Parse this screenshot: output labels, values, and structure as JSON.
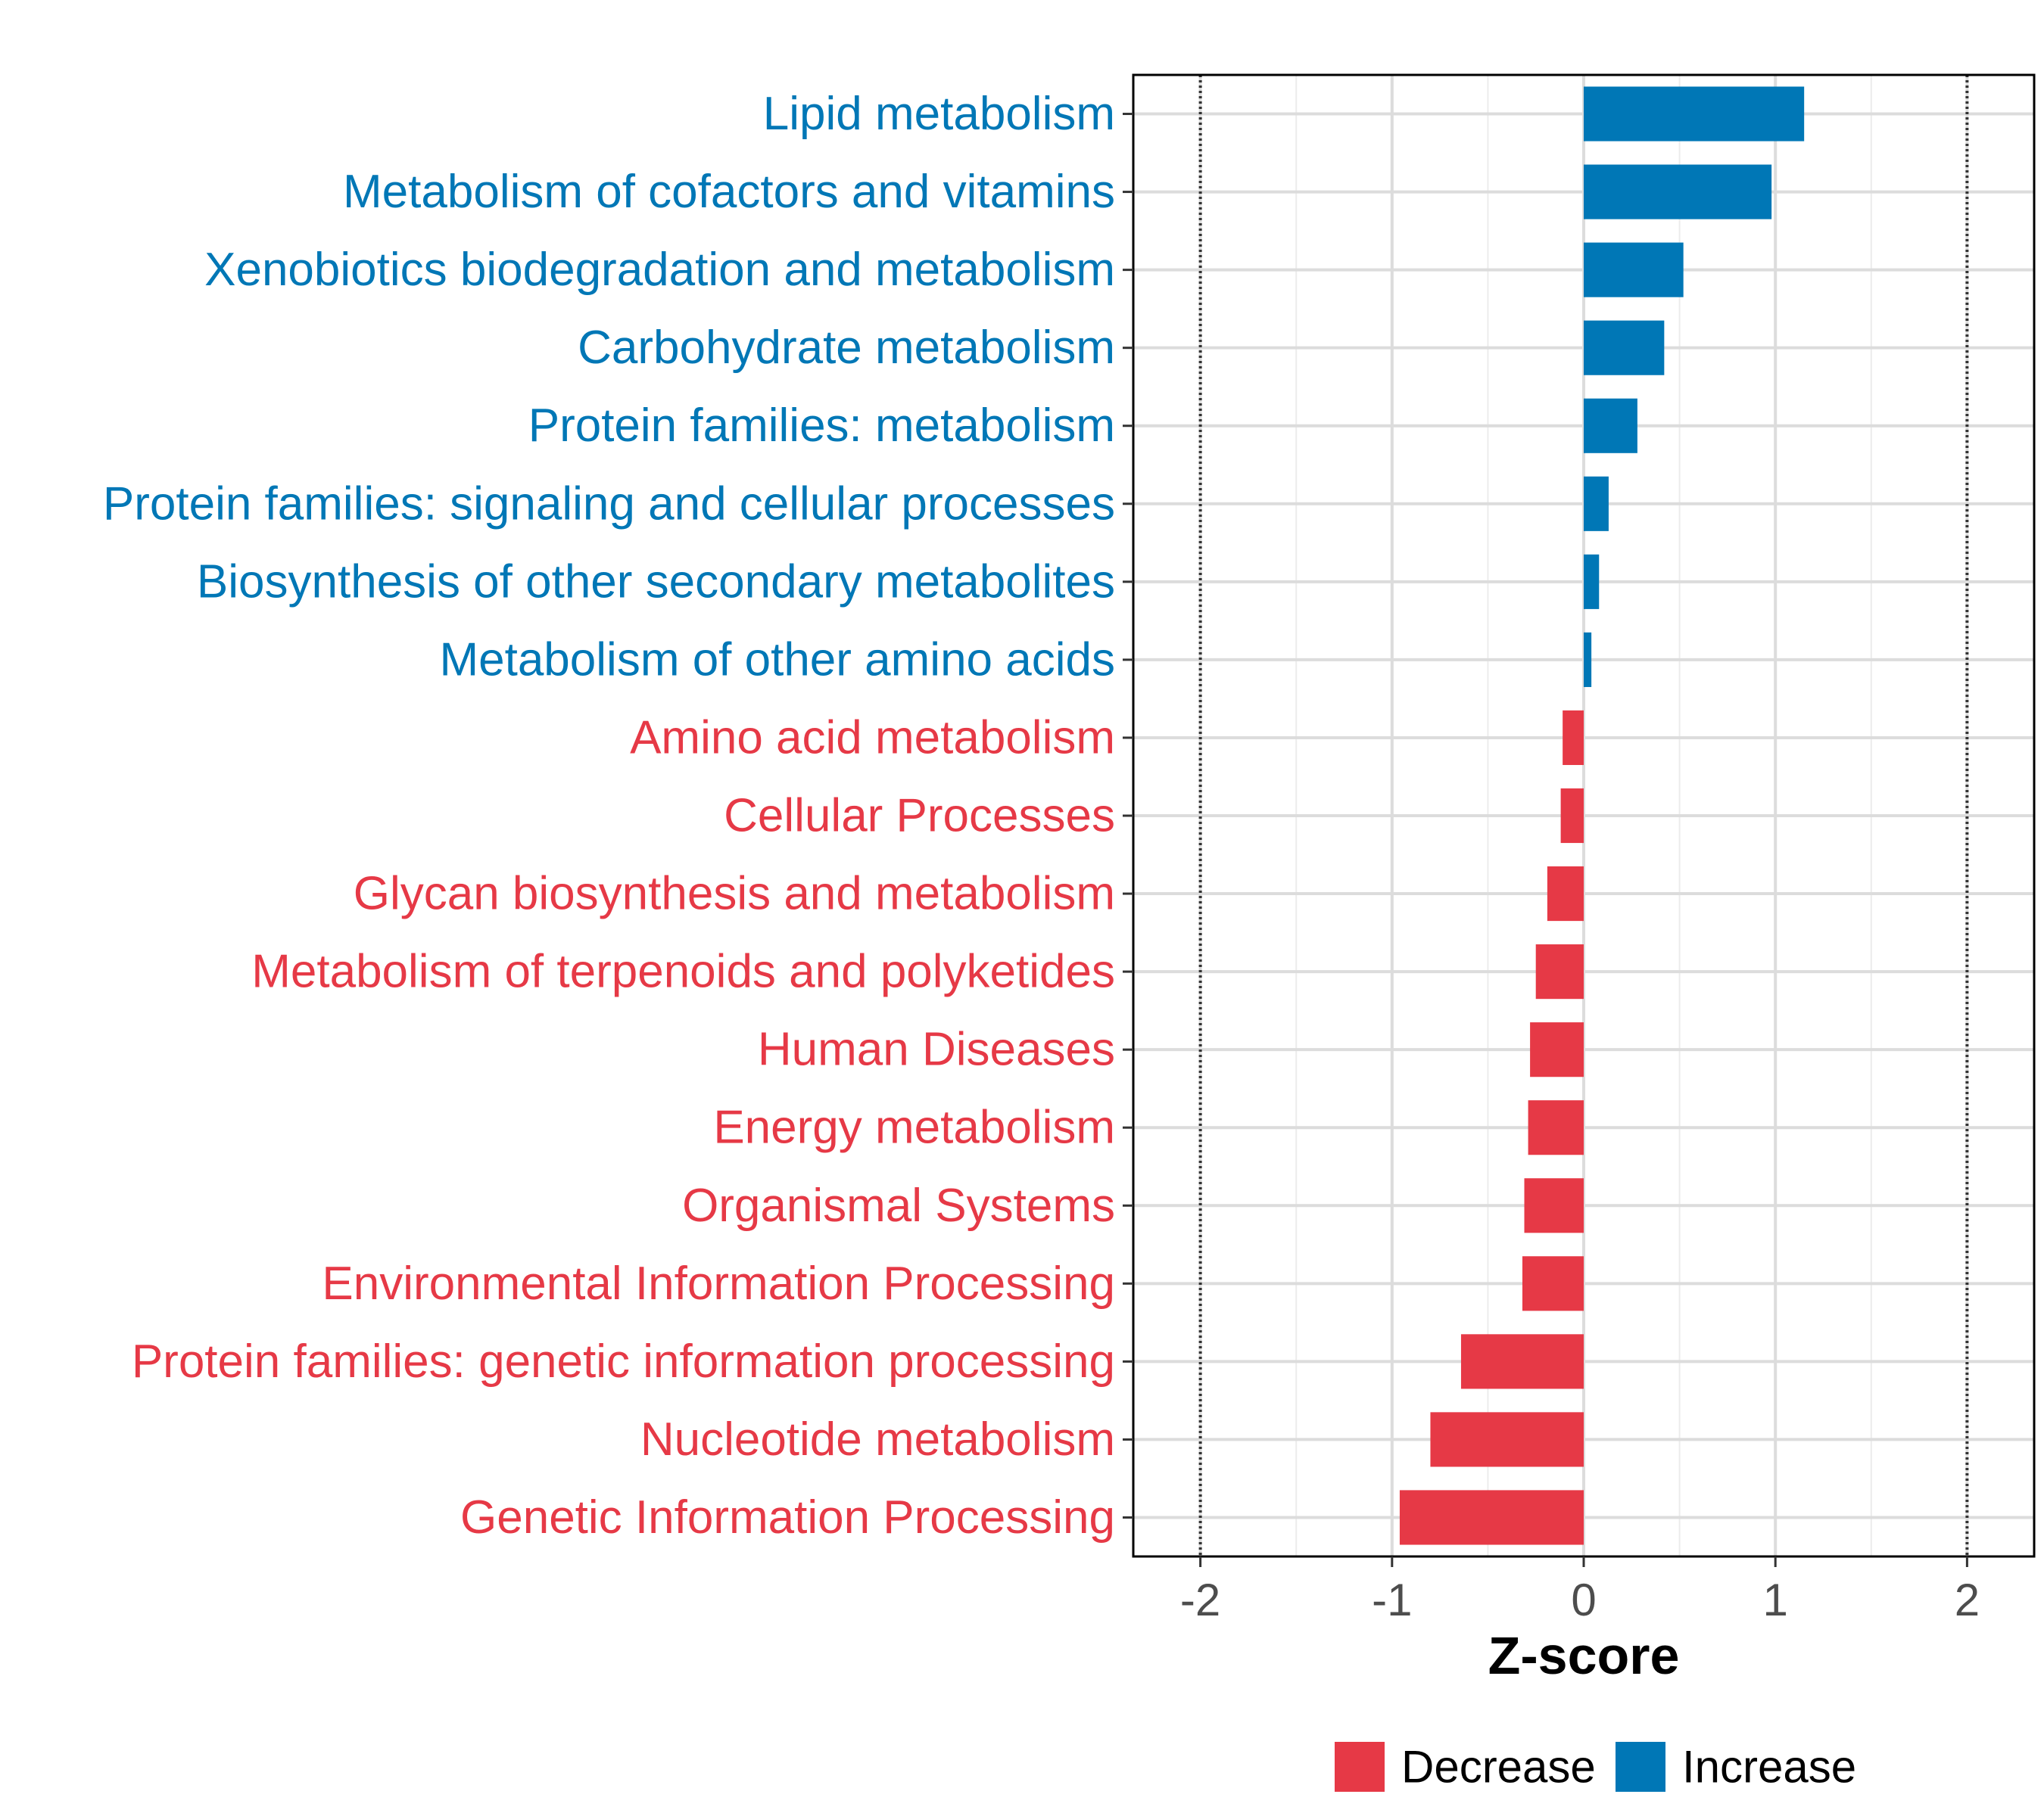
{
  "chart_data": {
    "type": "bar",
    "orientation": "horizontal",
    "xlabel": "Z-score",
    "ylabel": "",
    "xlim": [
      -2.35,
      2.35
    ],
    "xticks": [
      -2,
      -1,
      0,
      1,
      2
    ],
    "xtick_labels": [
      "-2",
      "-1",
      "0",
      "1",
      "2"
    ],
    "reference_lines": [
      -2,
      2
    ],
    "grid": true,
    "categories": [
      "Lipid metabolism",
      "Metabolism of cofactors and vitamins",
      "Xenobiotics biodegradation and metabolism",
      "Carbohydrate metabolism",
      "Protein families: metabolism",
      "Protein families: signaling and cellular processes",
      "Biosynthesis of other secondary metabolites",
      "Metabolism of other amino acids",
      "Amino acid metabolism",
      "Cellular Processes",
      "Glycan biosynthesis and metabolism",
      "Metabolism of terpenoids and polyketides",
      "Human Diseases",
      "Energy metabolism",
      "Organismal Systems",
      "Environmental Information Processing",
      "Protein families: genetic information processing",
      "Nucleotide metabolism",
      "Genetic Information Processing"
    ],
    "values": [
      1.15,
      0.98,
      0.52,
      0.42,
      0.28,
      0.13,
      0.08,
      0.04,
      -0.11,
      -0.12,
      -0.19,
      -0.25,
      -0.28,
      -0.29,
      -0.31,
      -0.32,
      -0.64,
      -0.8,
      -0.96
    ],
    "legend": {
      "position": "bottom",
      "entries": [
        {
          "label": "Decrease",
          "color": "#e63946"
        },
        {
          "label": "Increase",
          "color": "#0077b6"
        }
      ]
    }
  }
}
